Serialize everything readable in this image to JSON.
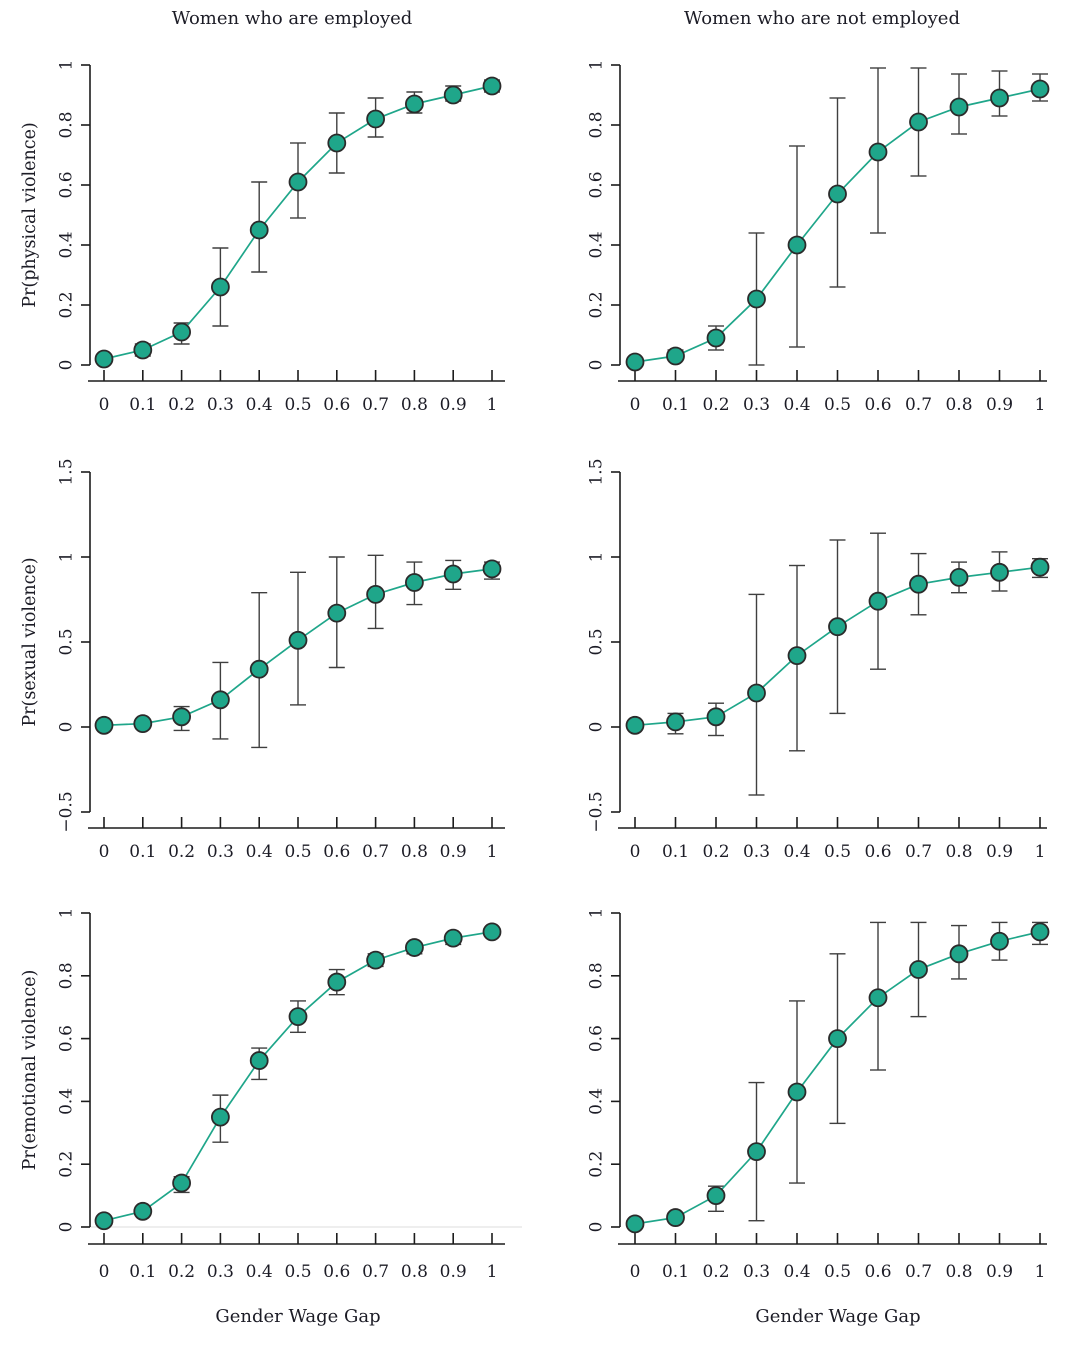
{
  "figure": {
    "background": "#ffffff",
    "accent_color": "#1fa68a",
    "marker_stroke_color": "#2b2b2b",
    "errorbar_color": "#3f3f3f",
    "axis_color": "#1c1c1c",
    "text_color": "#1c1c26",
    "baseline_color": "#e4e4e4"
  },
  "columns": [
    {
      "title": "Women who are employed",
      "xlabel": "Gender Wage Gap"
    },
    {
      "title": "Women who are not employed",
      "xlabel": "Gender Wage Gap"
    }
  ],
  "chart_data": [
    {
      "type": "line",
      "name": "panel-physical-employed",
      "title": "Women who are employed",
      "ylabel": "Pr(physical violence)",
      "xlabel": "Gender Wage Gap",
      "x": [
        0,
        0.1,
        0.2,
        0.3,
        0.4,
        0.5,
        0.6,
        0.7,
        0.8,
        0.9,
        1
      ],
      "y": [
        0.02,
        0.05,
        0.11,
        0.26,
        0.45,
        0.61,
        0.74,
        0.82,
        0.87,
        0.9,
        0.93
      ],
      "err_lo": [
        0.01,
        0.03,
        0.07,
        0.13,
        0.31,
        0.49,
        0.64,
        0.76,
        0.84,
        0.88,
        0.91
      ],
      "err_hi": [
        0.03,
        0.07,
        0.14,
        0.39,
        0.61,
        0.74,
        0.84,
        0.89,
        0.91,
        0.93,
        0.95
      ],
      "ylim": [
        0,
        1
      ],
      "yticks": [
        0,
        0.2,
        0.4,
        0.6,
        0.8,
        1
      ],
      "ytick_labels": [
        "0",
        "0.2",
        "0.4",
        "0.6",
        "0.8",
        "1"
      ],
      "xtick_labels": [
        "0",
        "0.1",
        "0.2",
        "0.3",
        "0.4",
        "0.5",
        "0.6",
        "0.7",
        "0.8",
        "0.9",
        "1"
      ],
      "grid": false,
      "baseline_rule": false
    },
    {
      "type": "line",
      "name": "panel-physical-not-employed",
      "title": "Women who are not employed",
      "ylabel": "",
      "xlabel": "Gender Wage Gap",
      "x": [
        0,
        0.1,
        0.2,
        0.3,
        0.4,
        0.5,
        0.6,
        0.7,
        0.8,
        0.9,
        1
      ],
      "y": [
        0.01,
        0.03,
        0.09,
        0.22,
        0.4,
        0.57,
        0.71,
        0.81,
        0.86,
        0.89,
        0.92
      ],
      "err_lo": [
        0.0,
        0.02,
        0.05,
        0.0,
        0.06,
        0.26,
        0.44,
        0.63,
        0.77,
        0.83,
        0.88
      ],
      "err_hi": [
        0.02,
        0.05,
        0.13,
        0.44,
        0.73,
        0.89,
        0.99,
        0.99,
        0.97,
        0.98,
        0.97
      ],
      "ylim": [
        0,
        1
      ],
      "yticks": [
        0,
        0.2,
        0.4,
        0.6,
        0.8,
        1
      ],
      "ytick_labels": [
        "0",
        "0.2",
        "0.4",
        "0.6",
        "0.8",
        "1"
      ],
      "xtick_labels": [
        "0",
        "0.1",
        "0.2",
        "0.3",
        "0.4",
        "0.5",
        "0.6",
        "0.7",
        "0.8",
        "0.9",
        "1"
      ],
      "grid": false,
      "baseline_rule": false
    },
    {
      "type": "line",
      "name": "panel-sexual-employed",
      "title": "",
      "ylabel": "Pr(sexual violence)",
      "xlabel": "Gender Wage Gap",
      "x": [
        0,
        0.1,
        0.2,
        0.3,
        0.4,
        0.5,
        0.6,
        0.7,
        0.8,
        0.9,
        1
      ],
      "y": [
        0.01,
        0.02,
        0.06,
        0.16,
        0.34,
        0.51,
        0.67,
        0.78,
        0.85,
        0.9,
        0.93
      ],
      "err_lo": [
        0.0,
        0.01,
        -0.02,
        -0.07,
        -0.12,
        0.13,
        0.35,
        0.58,
        0.72,
        0.81,
        0.87
      ],
      "err_hi": [
        0.02,
        0.04,
        0.12,
        0.38,
        0.79,
        0.91,
        1.0,
        1.01,
        0.97,
        0.98,
        0.97
      ],
      "ylim": [
        -0.5,
        1.5
      ],
      "yticks": [
        -0.5,
        0,
        0.5,
        1,
        1.5
      ],
      "ytick_labels": [
        "−0.5",
        "0",
        "0.5",
        "1",
        "1.5"
      ],
      "xtick_labels": [
        "0",
        "0.1",
        "0.2",
        "0.3",
        "0.4",
        "0.5",
        "0.6",
        "0.7",
        "0.8",
        "0.9",
        "1"
      ],
      "grid": false,
      "baseline_rule": false
    },
    {
      "type": "line",
      "name": "panel-sexual-not-employed",
      "title": "",
      "ylabel": "",
      "xlabel": "Gender Wage Gap",
      "x": [
        0,
        0.1,
        0.2,
        0.3,
        0.4,
        0.5,
        0.6,
        0.7,
        0.8,
        0.9,
        1
      ],
      "y": [
        0.01,
        0.03,
        0.06,
        0.2,
        0.42,
        0.59,
        0.74,
        0.84,
        0.88,
        0.91,
        0.94
      ],
      "err_lo": [
        0.0,
        -0.04,
        -0.05,
        -0.4,
        -0.14,
        0.08,
        0.34,
        0.66,
        0.79,
        0.8,
        0.88
      ],
      "err_hi": [
        0.02,
        0.08,
        0.14,
        0.78,
        0.95,
        1.1,
        1.14,
        1.02,
        0.97,
        1.03,
        0.99
      ],
      "ylim": [
        -0.5,
        1.5
      ],
      "yticks": [
        -0.5,
        0,
        0.5,
        1,
        1.5
      ],
      "ytick_labels": [
        "−0.5",
        "0",
        "0.5",
        "1",
        "1.5"
      ],
      "xtick_labels": [
        "0",
        "0.1",
        "0.2",
        "0.3",
        "0.4",
        "0.5",
        "0.6",
        "0.7",
        "0.8",
        "0.9",
        "1"
      ],
      "grid": false,
      "baseline_rule": false
    },
    {
      "type": "line",
      "name": "panel-emotional-employed",
      "title": "",
      "ylabel": "Pr(emotional violence)",
      "xlabel": "Gender Wage Gap",
      "x": [
        0,
        0.1,
        0.2,
        0.3,
        0.4,
        0.5,
        0.6,
        0.7,
        0.8,
        0.9,
        1
      ],
      "y": [
        0.02,
        0.05,
        0.14,
        0.35,
        0.53,
        0.67,
        0.78,
        0.85,
        0.89,
        0.92,
        0.94
      ],
      "err_lo": [
        0.01,
        0.04,
        0.11,
        0.27,
        0.47,
        0.62,
        0.74,
        0.83,
        0.87,
        0.9,
        0.93
      ],
      "err_hi": [
        0.03,
        0.06,
        0.16,
        0.42,
        0.57,
        0.72,
        0.82,
        0.87,
        0.9,
        0.93,
        0.95
      ],
      "ylim": [
        0,
        1
      ],
      "yticks": [
        0,
        0.2,
        0.4,
        0.6,
        0.8,
        1
      ],
      "ytick_labels": [
        "0",
        "0.2",
        "0.4",
        "0.6",
        "0.8",
        "1"
      ],
      "xtick_labels": [
        "0",
        "0.1",
        "0.2",
        "0.3",
        "0.4",
        "0.5",
        "0.6",
        "0.7",
        "0.8",
        "0.9",
        "1"
      ],
      "grid": false,
      "baseline_rule": true
    },
    {
      "type": "line",
      "name": "panel-emotional-not-employed",
      "title": "",
      "ylabel": "",
      "xlabel": "Gender Wage Gap",
      "x": [
        0,
        0.1,
        0.2,
        0.3,
        0.4,
        0.5,
        0.6,
        0.7,
        0.8,
        0.9,
        1
      ],
      "y": [
        0.01,
        0.03,
        0.1,
        0.24,
        0.43,
        0.6,
        0.73,
        0.82,
        0.87,
        0.91,
        0.94
      ],
      "err_lo": [
        0.0,
        0.02,
        0.05,
        0.02,
        0.14,
        0.33,
        0.5,
        0.67,
        0.79,
        0.85,
        0.9
      ],
      "err_hi": [
        0.02,
        0.04,
        0.13,
        0.46,
        0.72,
        0.87,
        0.97,
        0.97,
        0.96,
        0.97,
        0.97
      ],
      "ylim": [
        0,
        1
      ],
      "yticks": [
        0,
        0.2,
        0.4,
        0.6,
        0.8,
        1
      ],
      "ytick_labels": [
        "0",
        "0.2",
        "0.4",
        "0.6",
        "0.8",
        "1"
      ],
      "xtick_labels": [
        "0",
        "0.1",
        "0.2",
        "0.3",
        "0.4",
        "0.5",
        "0.6",
        "0.7",
        "0.8",
        "0.9",
        "1"
      ],
      "grid": false,
      "baseline_rule": true
    }
  ]
}
